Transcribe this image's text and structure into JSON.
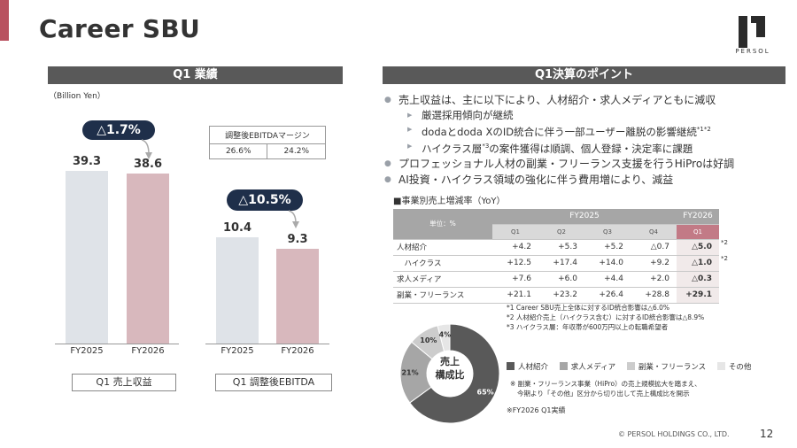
{
  "page": {
    "title": "Career SBU",
    "logo_text": "PERSOL",
    "copyright": "© PERSOL HOLDINGS CO., LTD.",
    "page_number": "12"
  },
  "left_panel": {
    "header": "Q1 業績",
    "unit": "（Billion Yen）",
    "revenue": {
      "change_label": "△1.7%",
      "bars": [
        {
          "label": "FY2025",
          "value": 39.3
        },
        {
          "label": "FY2026",
          "value": 38.6
        }
      ],
      "values_text": [
        "39.3",
        "38.6"
      ],
      "caption": "Q1 売上収益"
    },
    "ebitda": {
      "change_label": "△10.5%",
      "bars": [
        {
          "label": "FY2025",
          "value": 10.4
        },
        {
          "label": "FY2026",
          "value": 9.3
        }
      ],
      "values_text": [
        "10.4",
        "9.3"
      ],
      "caption": "Q1 調整後EBITDA",
      "margin_table": {
        "header": "調整後EBITDAマージン",
        "values": [
          "26.6%",
          "24.2%"
        ]
      }
    }
  },
  "right_panel": {
    "header": "Q1決算のポイント",
    "bullets": [
      {
        "text": "売上収益は、主に以下により、人材紹介・求人メディアともに減収",
        "sub": [
          {
            "text": "厳選採用傾向が継続",
            "sup": ""
          },
          {
            "text": "dodaとdoda XのID統合に伴う一部ユーザー離脱の影響継続",
            "sup": "*1*2"
          },
          {
            "text": "ハイクラス層",
            "sup": "*3",
            "text2": "の案件獲得は順調、個人登録・決定率に課題"
          }
        ]
      },
      {
        "text": "プロフェッショナル人材の副業・フリーランス支援を行うHiProは好調",
        "sub": []
      },
      {
        "text": "AI投資・ハイクラス領域の強化に伴う費用増により、減益",
        "sub": []
      }
    ],
    "growth_table": {
      "title": "■事業別売上増減率（YoY）",
      "unit_label": "単位：%",
      "fy2025": "FY2025",
      "fy2026": "FY2026",
      "quarters": [
        "Q1",
        "Q2",
        "Q3",
        "Q4"
      ],
      "q1_2026": "Q1",
      "rows": [
        {
          "label": "人材紹介",
          "vals": [
            "+4.2",
            "+5.3",
            "+5.2",
            "△0.7"
          ],
          "fy26": "△5.0",
          "note": "*2"
        },
        {
          "label": "　ハイクラス",
          "vals": [
            "+12.5",
            "+17.4",
            "+14.0",
            "+9.2"
          ],
          "fy26": "△1.0",
          "note": "*2"
        },
        {
          "label": "求人メディア",
          "vals": [
            "+7.6",
            "+6.0",
            "+4.4",
            "+2.0"
          ],
          "fy26": "△0.3",
          "note": ""
        },
        {
          "label": "副業・フリーランス",
          "vals": [
            "+21.1",
            "+23.2",
            "+26.4",
            "+28.8"
          ],
          "fy26": "+29.1",
          "note": ""
        }
      ]
    },
    "notes": [
      "*1 Career SBU売上全体に対するID統合影響は△6.0%",
      "*2 人材紹介売上（ハイクラス含む）に対するID統合影響は△8.9%",
      "*3 ハイクラス層：年収帯が600万円以上の転職希望者"
    ],
    "donut": {
      "center_label_1": "売上",
      "center_label_2": "構成比",
      "slices": [
        {
          "name": "人材紹介",
          "pct": 65,
          "label": "65%",
          "color": "#595959"
        },
        {
          "name": "求人メディア",
          "pct": 21,
          "label": "21%",
          "color": "#a6a6a6"
        },
        {
          "name": "副業・フリーランス",
          "pct": 10,
          "label": "10%",
          "color": "#cccccc"
        },
        {
          "name": "その他",
          "pct": 4,
          "label": "4%",
          "color": "#e6e6e6"
        }
      ]
    },
    "legend": [
      "人材紹介",
      "求人メディア",
      "副業・フリーランス",
      "その他"
    ],
    "donut_note": [
      "※ 副業・フリーランス事業（HiPro）の売上規模拡大を踏まえ、",
      "今期より「その他」区分から切り出して売上構成比を開示"
    ],
    "fy_note": "※FY2026 Q1実績"
  }
}
